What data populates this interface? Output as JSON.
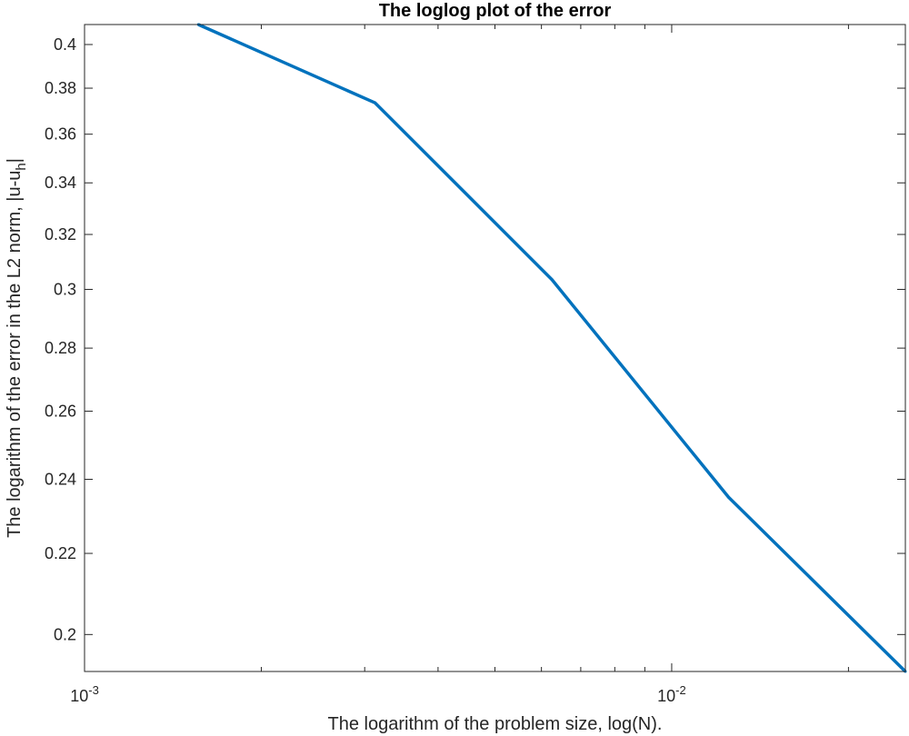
{
  "chart_data": {
    "type": "line",
    "title": "The loglog plot of the error",
    "xlabel": "The logarithm of the problem size, log(N).",
    "ylabel_main": "The logarithm of the error in the L2 norm, |u-u",
    "ylabel_subscript": "h",
    "ylabel_suffix": "|",
    "xscale": "log",
    "yscale": "log",
    "xlim": [
      0.001,
      0.025
    ],
    "ylim": [
      0.1915,
      0.4095
    ],
    "x_ticks": [
      {
        "value": 0.001,
        "base": "10",
        "exponent": "-3"
      },
      {
        "value": 0.01,
        "base": "10",
        "exponent": "-2"
      }
    ],
    "x_minor_ticks": [
      0.002,
      0.003,
      0.004,
      0.005,
      0.006,
      0.007,
      0.008,
      0.009,
      0.02
    ],
    "y_ticks": [
      {
        "value": 0.2,
        "label": "0.2"
      },
      {
        "value": 0.22,
        "label": "0.22"
      },
      {
        "value": 0.24,
        "label": "0.24"
      },
      {
        "value": 0.26,
        "label": "0.26"
      },
      {
        "value": 0.28,
        "label": "0.28"
      },
      {
        "value": 0.3,
        "label": "0.3"
      },
      {
        "value": 0.32,
        "label": "0.32"
      },
      {
        "value": 0.34,
        "label": "0.34"
      },
      {
        "value": 0.36,
        "label": "0.36"
      },
      {
        "value": 0.38,
        "label": "0.38"
      },
      {
        "value": 0.4,
        "label": "0.4"
      }
    ],
    "grid": false,
    "series": [
      {
        "color": "#0072BD",
        "x": [
          0.0015625,
          0.003125,
          0.00625,
          0.0125,
          0.025
        ],
        "y": [
          0.4095,
          0.3735,
          0.3035,
          0.235,
          0.1915
        ]
      }
    ]
  }
}
